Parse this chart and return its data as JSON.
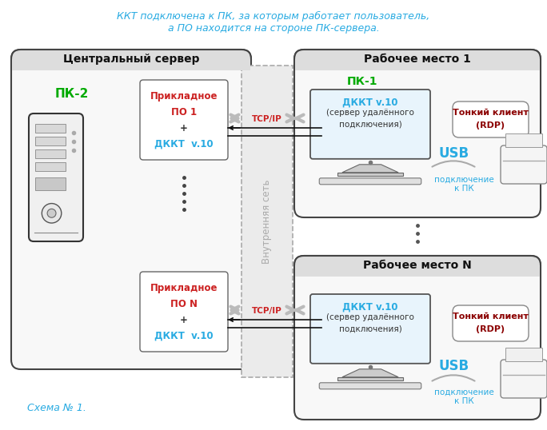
{
  "title_line1": "ККТ подключена к ПК, за которым работает пользователь,",
  "title_line2": "а ПО находится на стороне ПК-сервера.",
  "title_color": "#29ABE2",
  "schema_label": "Схема № 1.",
  "schema_color": "#29ABE2",
  "central_server_label": "Центральный сервер",
  "pk2_label": "ПК-2",
  "pk2_color": "#00AA00",
  "app_box1_lines": [
    "Прикладное",
    "ПО 1",
    "+",
    "ДККТ  v.10"
  ],
  "app_box2_lines": [
    "Прикладное",
    "ПО N",
    "+",
    "ДККТ  v.10"
  ],
  "app_box_text_colors": [
    "#CC2222",
    "#CC2222",
    "#333333",
    "#29ABE2"
  ],
  "inner_net_label": "Внутренняя сеть",
  "inner_net_color": "#AAAAAA",
  "tcp_ip_label": "TCP/IP",
  "tcp_ip_color": "#CC2222",
  "workstation1_label": "Рабочее место 1",
  "workstationN_label": "Рабочее место N",
  "pk1_label": "ПК-1",
  "pk1_color": "#00AA00",
  "dkkt_line1a": "ДККТ v.10",
  "dkkt_line1b": "(сервер удалённого",
  "dkkt_line1c": "подключения)",
  "dkkt_color": "#29ABE2",
  "thin_client_line1": "Тонкий клиент",
  "thin_client_line2": "(RDP)",
  "thin_client_color": "#8B0000",
  "usb_label": "USB",
  "usb_color": "#29ABE2",
  "connection_label": "подключение\nк ПК",
  "connection_color": "#29ABE2",
  "bg_color": "#FFFFFF",
  "arrow_color": "#BBBBBB",
  "line_color": "#333333"
}
